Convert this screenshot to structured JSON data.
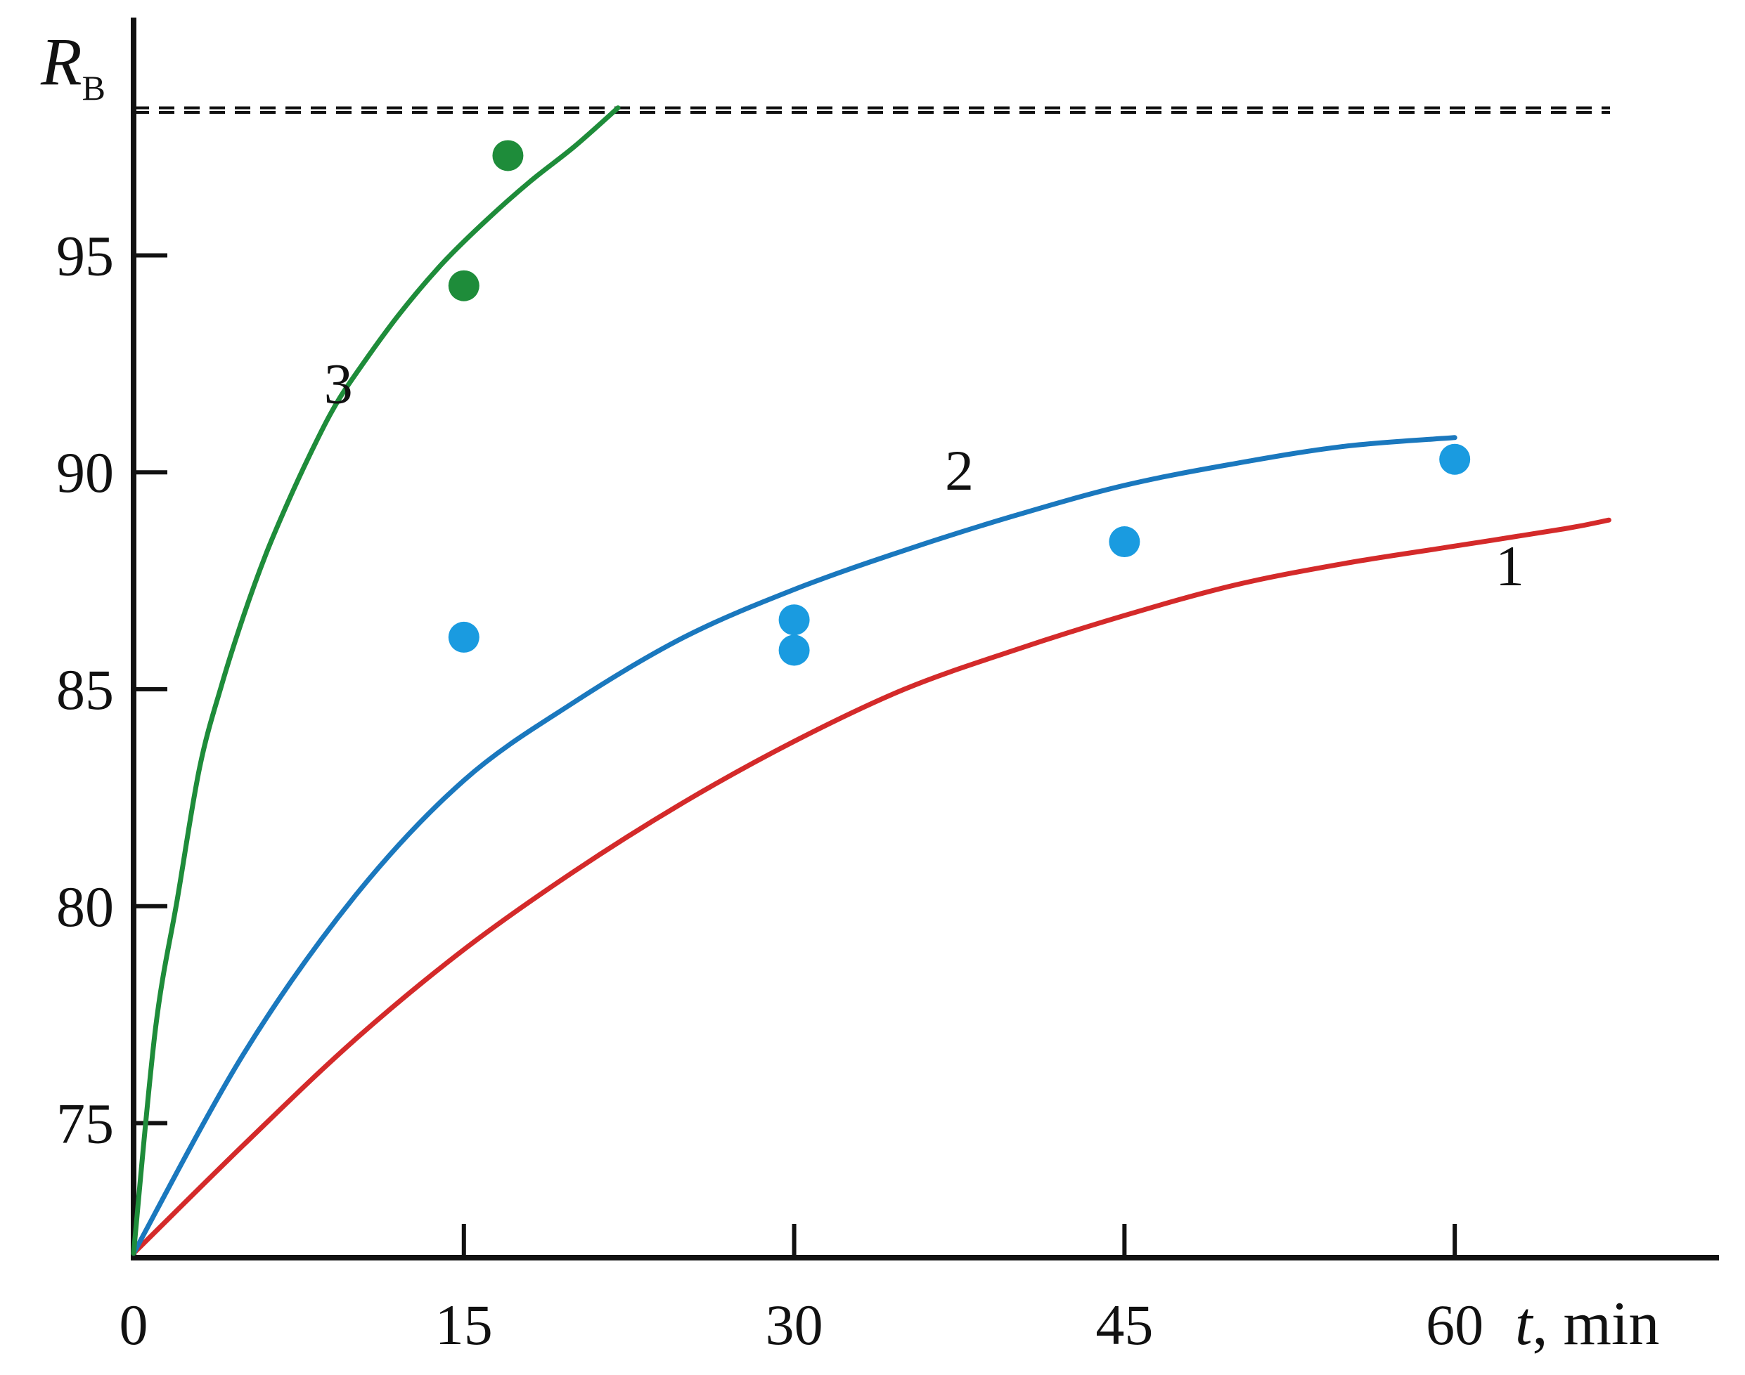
{
  "chart_data": {
    "type": "line",
    "xlabel": {
      "var": "t",
      "unit": ", min"
    },
    "ylabel": {
      "var": "R",
      "sub": "B"
    },
    "xlim": [
      0,
      72
    ],
    "ylim": [
      71.9,
      100.4
    ],
    "xticks": [
      0,
      15,
      30,
      45,
      60
    ],
    "yticks": [
      75,
      80,
      85,
      90,
      95
    ],
    "grid": false,
    "band": {
      "y_low": 98.4,
      "y_high": 100.5,
      "color": "#dcdcdc",
      "dash_color": "#111111"
    },
    "series": [
      {
        "label": "1",
        "color": "#d42a2a",
        "curve": [
          [
            0,
            72.0
          ],
          [
            5,
            74.5
          ],
          [
            10,
            76.9
          ],
          [
            15,
            79.0
          ],
          [
            20,
            80.8
          ],
          [
            25,
            82.4
          ],
          [
            30,
            83.8
          ],
          [
            35,
            85.0
          ],
          [
            40,
            85.9
          ],
          [
            45,
            86.7
          ],
          [
            50,
            87.4
          ],
          [
            55,
            87.9
          ],
          [
            60,
            88.3
          ],
          [
            65,
            88.7
          ],
          [
            67,
            88.9
          ]
        ],
        "points": []
      },
      {
        "label": "2",
        "color": "#1a78be",
        "point_color": "#1a9be0",
        "curve": [
          [
            0,
            72.0
          ],
          [
            5,
            76.6
          ],
          [
            10,
            80.2
          ],
          [
            15,
            82.9
          ],
          [
            20,
            84.7
          ],
          [
            25,
            86.2
          ],
          [
            30,
            87.3
          ],
          [
            35,
            88.2
          ],
          [
            40,
            89.0
          ],
          [
            45,
            89.7
          ],
          [
            50,
            90.2
          ],
          [
            55,
            90.6
          ],
          [
            60,
            90.8
          ]
        ],
        "points": [
          [
            15,
            86.2
          ],
          [
            30,
            86.6
          ],
          [
            30,
            85.9
          ],
          [
            45,
            88.4
          ],
          [
            60,
            90.3
          ]
        ]
      },
      {
        "label": "3",
        "color": "#1e8c3a",
        "point_color": "#1e8c3a",
        "curve": [
          [
            0,
            72.0
          ],
          [
            1,
            77.2
          ],
          [
            2,
            80.2
          ],
          [
            3,
            83.2
          ],
          [
            4,
            85.1
          ],
          [
            5,
            86.7
          ],
          [
            6,
            88.1
          ],
          [
            7,
            89.3
          ],
          [
            8,
            90.4
          ],
          [
            9,
            91.4
          ],
          [
            10,
            92.2
          ],
          [
            12,
            93.6
          ],
          [
            14,
            94.8
          ],
          [
            16,
            95.8
          ],
          [
            18,
            96.7
          ],
          [
            20,
            97.5
          ],
          [
            22,
            98.4
          ]
        ],
        "points": [
          [
            15,
            94.3
          ],
          [
            17,
            97.3
          ]
        ]
      }
    ]
  }
}
